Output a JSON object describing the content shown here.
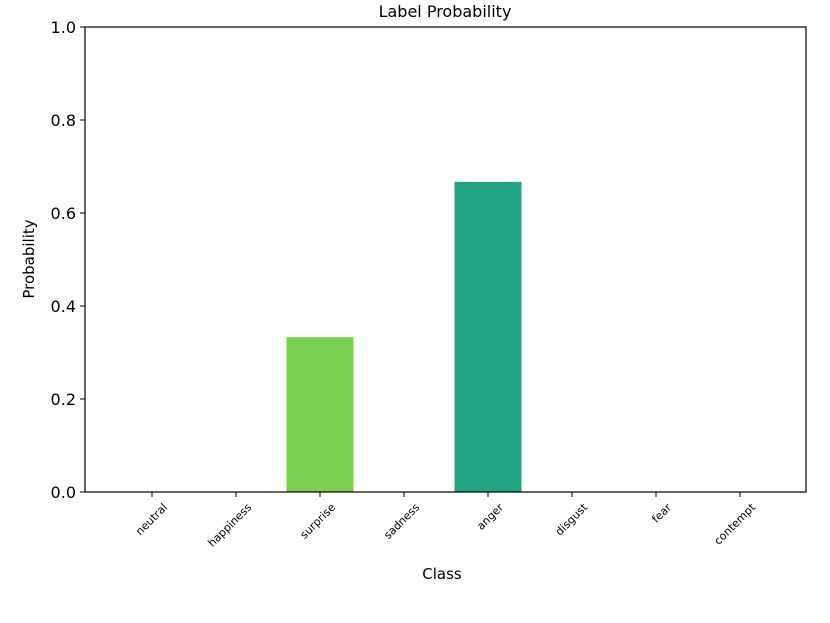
{
  "chart_data": {
    "type": "bar",
    "title": "Label Probability",
    "xlabel": "Class",
    "ylabel": "Probability",
    "categories": [
      "neutral",
      "happiness",
      "surprise",
      "sadness",
      "anger",
      "disgust",
      "fear",
      "contempt"
    ],
    "values": [
      0,
      0,
      0.333,
      0,
      0.667,
      0,
      0,
      0
    ],
    "colors": [
      "#440154",
      "#46327e",
      "#7ad151",
      "#365c8d",
      "#22a384",
      "#277f8e",
      "#1fa187",
      "#4ac16d"
    ],
    "ylim": [
      0,
      1.0
    ],
    "yticks": [
      "0.0",
      "0.2",
      "0.4",
      "0.6",
      "0.8",
      "1.0"
    ],
    "grid": false,
    "legend": "none"
  }
}
